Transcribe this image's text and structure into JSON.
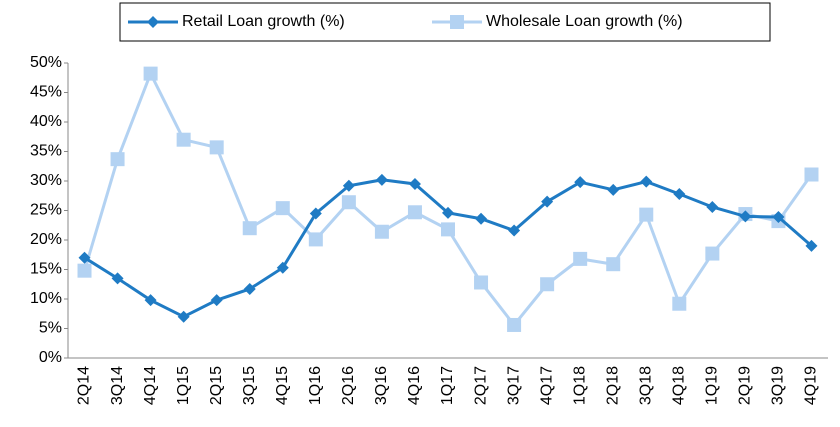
{
  "chart_data": {
    "type": "line",
    "categories": [
      "2Q14",
      "3Q14",
      "4Q14",
      "1Q15",
      "2Q15",
      "3Q15",
      "4Q15",
      "1Q16",
      "2Q16",
      "3Q16",
      "4Q16",
      "1Q17",
      "2Q17",
      "3Q17",
      "4Q17",
      "1Q18",
      "2Q18",
      "3Q18",
      "4Q18",
      "1Q19",
      "2Q19",
      "3Q19",
      "4Q19"
    ],
    "series": [
      {
        "name": "Retail Loan growth (%)",
        "color": "#1f7bc4",
        "marker": "diamond",
        "values": [
          17,
          13.5,
          9.8,
          7,
          9.8,
          11.7,
          15.3,
          24.5,
          29.2,
          30.2,
          29.5,
          24.6,
          23.6,
          21.6,
          26.5,
          29.8,
          28.5,
          29.9,
          27.8,
          25.6,
          24,
          23.9,
          19
        ]
      },
      {
        "name": "Wholesale Loan growth (%)",
        "color": "#b3d2f2",
        "marker": "square",
        "values": [
          14.8,
          33.7,
          48.2,
          37,
          35.7,
          22,
          25.4,
          20.1,
          26.4,
          21.4,
          24.7,
          21.8,
          12.8,
          5.6,
          12.5,
          16.8,
          15.9,
          24.3,
          9.2,
          17.7,
          24.4,
          23.2,
          31.1
        ]
      }
    ],
    "ylim": [
      0,
      50
    ],
    "yticks": [
      {
        "value": 0,
        "label": "0%"
      },
      {
        "value": 5,
        "label": "5%"
      },
      {
        "value": 10,
        "label": "10%"
      },
      {
        "value": 15,
        "label": "15%"
      },
      {
        "value": 20,
        "label": "20%"
      },
      {
        "value": 25,
        "label": "25%"
      },
      {
        "value": 30,
        "label": "30%"
      },
      {
        "value": 35,
        "label": "35%"
      },
      {
        "value": 40,
        "label": "40%"
      },
      {
        "value": 45,
        "label": "45%"
      },
      {
        "value": 50,
        "label": "50%"
      }
    ],
    "grid": false,
    "legend": "top"
  }
}
